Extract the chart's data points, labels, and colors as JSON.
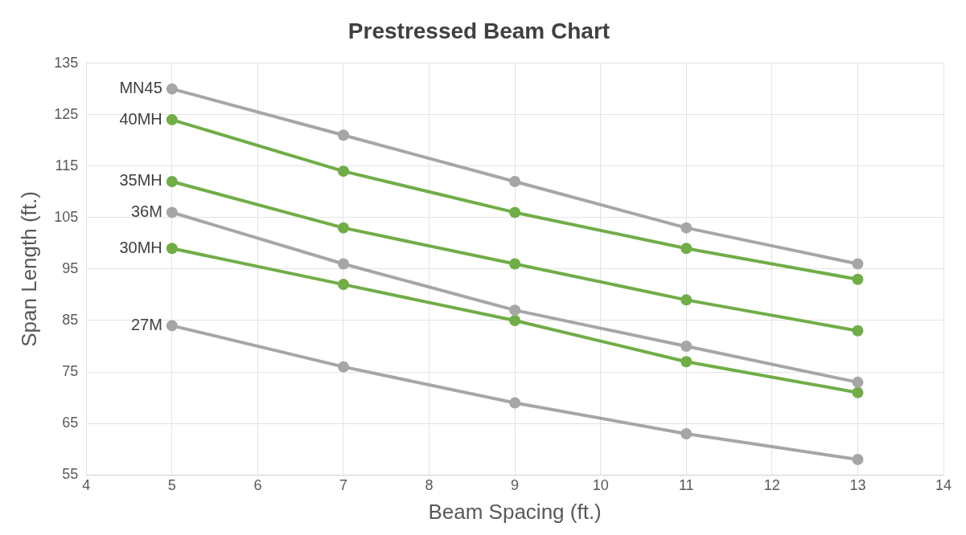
{
  "chart_data": {
    "type": "line",
    "title": "Prestressed Beam Chart",
    "xlabel": "Beam Spacing (ft.)",
    "ylabel": "Span Length (ft.)",
    "x": [
      5,
      7,
      9,
      11,
      13
    ],
    "series": [
      {
        "name": "MN45",
        "color": "#a6a6a6",
        "values": [
          130,
          121,
          112,
          103,
          96
        ]
      },
      {
        "name": "40MH",
        "color": "#70ad47",
        "values": [
          124,
          114,
          106,
          99,
          93
        ]
      },
      {
        "name": "35MH",
        "color": "#70ad47",
        "values": [
          112,
          103,
          96,
          89,
          83
        ]
      },
      {
        "name": "36M",
        "color": "#a6a6a6",
        "values": [
          106,
          96,
          87,
          80,
          73
        ]
      },
      {
        "name": "30MH",
        "color": "#70ad47",
        "values": [
          99,
          92,
          85,
          77,
          71
        ]
      },
      {
        "name": "27M",
        "color": "#a6a6a6",
        "values": [
          84,
          76,
          69,
          63,
          58
        ]
      }
    ],
    "xlim": [
      4,
      14
    ],
    "xticks": [
      4,
      5,
      6,
      7,
      8,
      9,
      10,
      11,
      12,
      13,
      14
    ],
    "ylim": [
      55,
      135
    ],
    "yticks": [
      55,
      65,
      75,
      85,
      95,
      105,
      115,
      125,
      135
    ],
    "grid": true,
    "legend": false,
    "marker": "circle",
    "line_style": "solid"
  }
}
